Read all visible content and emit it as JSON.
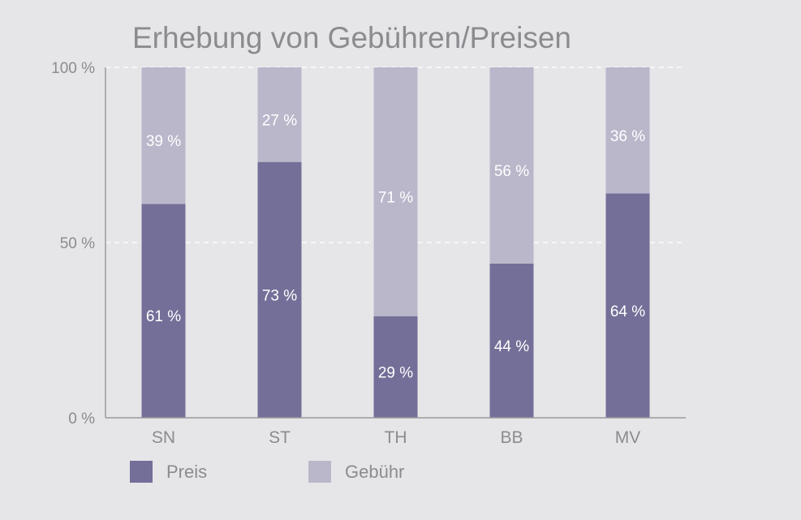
{
  "chart_data": {
    "type": "bar",
    "stacked": true,
    "title": "Erhebung von Gebühren/Preisen",
    "xlabel": "",
    "ylabel": "",
    "ylim": [
      0,
      100
    ],
    "yticks": [
      "0 %",
      "50 %",
      "100 %"
    ],
    "grid": true,
    "legend_placement": "bottom-left",
    "categories": [
      "SN",
      "ST",
      "TH",
      "BB",
      "MV"
    ],
    "series": [
      {
        "name": "Preis",
        "color": "#746f98",
        "values": [
          61,
          73,
          29,
          44,
          64
        ],
        "labels": [
          "61 %",
          "73 %",
          "29 %",
          "44 %",
          "64 %"
        ]
      },
      {
        "name": "Gebühr",
        "color": "#bab7cb",
        "values": [
          39,
          27,
          71,
          56,
          36
        ],
        "labels": [
          "39 %",
          "27 %",
          "71 %",
          "56 %",
          "36 %"
        ]
      }
    ]
  }
}
